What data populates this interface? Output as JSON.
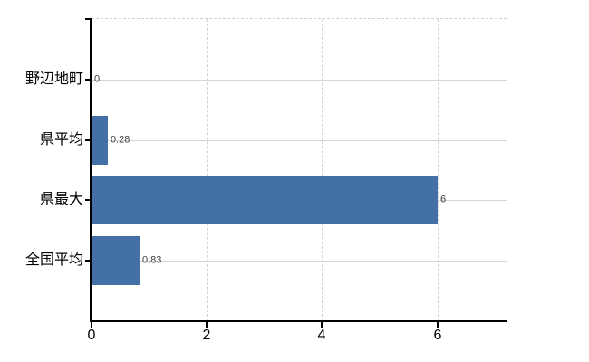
{
  "chart_data": {
    "type": "bar",
    "orientation": "horizontal",
    "title": "",
    "xlabel": "",
    "ylabel": "",
    "categories": [
      "野辺地町",
      "県平均",
      "県最大",
      "全国平均"
    ],
    "values": [
      0,
      0.28,
      6,
      0.83
    ],
    "value_labels": [
      "0",
      "0.28",
      "6",
      "0.83"
    ],
    "xlim": [
      0,
      7.2
    ],
    "x_ticks": [
      0,
      2,
      4,
      6
    ],
    "x_tick_labels": [
      "0",
      "2",
      "4",
      "6"
    ],
    "grid": true,
    "legend": false,
    "colors": {
      "bar_fill": "#4470a8",
      "axis": "#000000",
      "grid_horizontal": "#d2dace",
      "grid_vertical": "#d6cfd6",
      "top_border": "#d0d0d0",
      "value_label_text": "#3d3d3d",
      "tick_label_text": "#000000",
      "background": "#ffffff"
    }
  }
}
